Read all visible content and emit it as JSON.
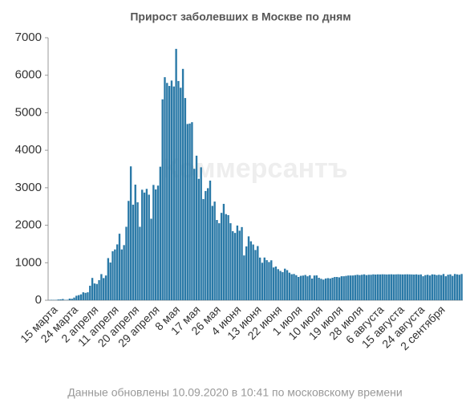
{
  "chart_data": {
    "type": "bar",
    "title": "Прирост заболевших в Москве по дням",
    "watermark": "Коммерсантъ",
    "footnote": "Данные обновлены 10.09.2020 в 10:41 по московскому времени",
    "color": "#2a79a7",
    "ylim": [
      0,
      7000
    ],
    "yticks": [
      0,
      1000,
      2000,
      3000,
      4000,
      5000,
      6000,
      7000
    ],
    "grid": false,
    "categories": [
      null,
      null,
      null,
      "15 марта",
      null,
      null,
      null,
      null,
      null,
      null,
      null,
      null,
      "24 марта",
      null,
      null,
      null,
      null,
      null,
      null,
      null,
      null,
      "2 апреля",
      null,
      null,
      null,
      null,
      null,
      null,
      null,
      null,
      "11 апреля",
      null,
      null,
      null,
      null,
      null,
      null,
      null,
      null,
      "20 апреля",
      null,
      null,
      null,
      null,
      null,
      null,
      null,
      null,
      "29 апреля",
      null,
      null,
      null,
      null,
      null,
      null,
      null,
      null,
      "8 мая",
      null,
      null,
      null,
      null,
      null,
      null,
      null,
      null,
      "17 мая",
      null,
      null,
      null,
      null,
      null,
      null,
      null,
      null,
      "26 мая",
      null,
      null,
      null,
      null,
      null,
      null,
      null,
      null,
      "4 июня",
      null,
      null,
      null,
      null,
      null,
      null,
      null,
      null,
      "13 июня",
      null,
      null,
      null,
      null,
      null,
      null,
      null,
      null,
      "22 июня",
      null,
      null,
      null,
      null,
      null,
      null,
      null,
      null,
      "1 июля",
      null,
      null,
      null,
      null,
      null,
      null,
      null,
      null,
      "10 июля",
      null,
      null,
      null,
      null,
      null,
      null,
      null,
      null,
      "19 июля",
      null,
      null,
      null,
      null,
      null,
      null,
      null,
      null,
      "28 июля",
      null,
      null,
      null,
      null,
      null,
      null,
      null,
      null,
      "6 августа",
      null,
      null,
      null,
      null,
      null,
      null,
      null,
      null,
      "15 августа",
      null,
      null,
      null,
      null,
      null,
      null,
      null,
      null,
      "24 августа",
      null,
      null,
      null,
      null,
      null,
      null,
      null,
      null,
      "2 сентября",
      null,
      null,
      null,
      null,
      null,
      null,
      null,
      null
    ],
    "values": [
      5,
      11,
      8,
      9,
      20,
      24,
      33,
      10,
      12,
      44,
      41,
      71,
      120,
      136,
      157,
      212,
      197,
      212,
      387,
      595,
      448,
      434,
      536,
      697,
      591,
      660,
      1124,
      1006,
      1306,
      1355,
      1489,
      1774,
      1355,
      1470,
      1959,
      2649,
      3570,
      2548,
      3083,
      2612,
      1959,
      2947,
      2871,
      2970,
      2815,
      2174,
      3075,
      2954,
      3057,
      3561,
      5358,
      5948,
      5795,
      5714,
      5858,
      5700,
      6703,
      5846,
      5667,
      6169,
      5392,
      4700,
      4712,
      4748,
      3505,
      3855,
      3238,
      3545,
      2699,
      2913,
      2988,
      3190,
      2516,
      2631,
      2140,
      2054,
      2330,
      2570,
      2297,
      2270,
      2054,
      1842,
      1795,
      1992,
      1855,
      1951,
      1195,
      1436,
      1704,
      1572,
      1486,
      1340,
      1445,
      1138,
      1000,
      1139,
      1069,
      1019,
      1065,
      874,
      899,
      829,
      782,
      749,
      842,
      803,
      735,
      694,
      700,
      668,
      621,
      651,
      658,
      674,
      639,
      667,
      578,
      659,
      663,
      599,
      572,
      550,
      580,
      590,
      580,
      600,
      620,
      620,
      610,
      640,
      640,
      650,
      660,
      660,
      660,
      670,
      680,
      670,
      680,
      690,
      670,
      680,
      680,
      690,
      685,
      690,
      688,
      692,
      690,
      687,
      690,
      692,
      688,
      690,
      693,
      690,
      688,
      690,
      692,
      690,
      688,
      685,
      690,
      680,
      688,
      640,
      670,
      680,
      660,
      690,
      685,
      670,
      680,
      670,
      700,
      640,
      680,
      690,
      650,
      700,
      690,
      680,
      700
    ]
  }
}
